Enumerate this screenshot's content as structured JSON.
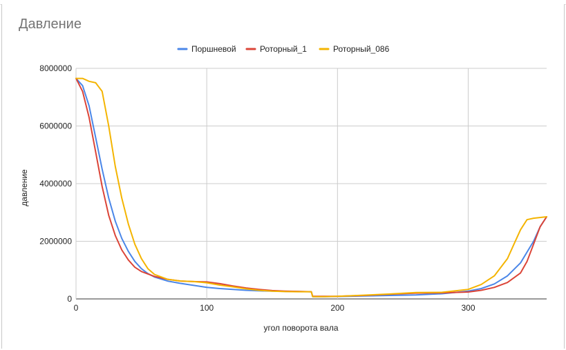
{
  "chart_data": {
    "type": "line",
    "title": "Давление",
    "xlabel": "угол поворота вала",
    "ylabel": "давление",
    "xlim": [
      0,
      360
    ],
    "ylim": [
      0,
      8000000
    ],
    "x_ticks": [
      "0",
      "100",
      "200",
      "300"
    ],
    "y_ticks": [
      "0",
      "2000000",
      "4000000",
      "6000000",
      "8000000"
    ],
    "grid": true,
    "legend_position": "top",
    "series": [
      {
        "name": "Поршневой",
        "color": "#4a86e8",
        "points": [
          [
            0,
            7650000
          ],
          [
            5,
            7400000
          ],
          [
            10,
            6700000
          ],
          [
            15,
            5600000
          ],
          [
            20,
            4500000
          ],
          [
            25,
            3500000
          ],
          [
            30,
            2700000
          ],
          [
            35,
            2100000
          ],
          [
            40,
            1650000
          ],
          [
            45,
            1300000
          ],
          [
            50,
            1050000
          ],
          [
            55,
            880000
          ],
          [
            60,
            760000
          ],
          [
            70,
            620000
          ],
          [
            80,
            540000
          ],
          [
            90,
            470000
          ],
          [
            100,
            400000
          ],
          [
            110,
            360000
          ],
          [
            120,
            330000
          ],
          [
            130,
            300000
          ],
          [
            140,
            280000
          ],
          [
            150,
            270000
          ],
          [
            160,
            260000
          ],
          [
            170,
            255000
          ],
          [
            180,
            250000
          ],
          [
            181,
            80000
          ],
          [
            190,
            80000
          ],
          [
            200,
            85000
          ],
          [
            220,
            100000
          ],
          [
            240,
            120000
          ],
          [
            260,
            140000
          ],
          [
            280,
            180000
          ],
          [
            300,
            270000
          ],
          [
            310,
            360000
          ],
          [
            320,
            520000
          ],
          [
            330,
            800000
          ],
          [
            340,
            1250000
          ],
          [
            350,
            2000000
          ],
          [
            355,
            2500000
          ],
          [
            360,
            2850000
          ]
        ]
      },
      {
        "name": "Роторный_1",
        "color": "#db4437",
        "points": [
          [
            0,
            7650000
          ],
          [
            5,
            7200000
          ],
          [
            10,
            6300000
          ],
          [
            15,
            5100000
          ],
          [
            20,
            3900000
          ],
          [
            25,
            2900000
          ],
          [
            30,
            2200000
          ],
          [
            35,
            1700000
          ],
          [
            40,
            1350000
          ],
          [
            45,
            1100000
          ],
          [
            50,
            950000
          ],
          [
            60,
            780000
          ],
          [
            70,
            680000
          ],
          [
            80,
            620000
          ],
          [
            90,
            600000
          ],
          [
            100,
            590000
          ],
          [
            110,
            530000
          ],
          [
            120,
            450000
          ],
          [
            130,
            380000
          ],
          [
            140,
            330000
          ],
          [
            150,
            290000
          ],
          [
            160,
            270000
          ],
          [
            170,
            260000
          ],
          [
            180,
            250000
          ],
          [
            181,
            90000
          ],
          [
            190,
            90000
          ],
          [
            200,
            90000
          ],
          [
            220,
            120000
          ],
          [
            240,
            160000
          ],
          [
            260,
            200000
          ],
          [
            280,
            210000
          ],
          [
            300,
            240000
          ],
          [
            310,
            300000
          ],
          [
            320,
            400000
          ],
          [
            330,
            570000
          ],
          [
            340,
            900000
          ],
          [
            345,
            1300000
          ],
          [
            350,
            1900000
          ],
          [
            355,
            2500000
          ],
          [
            360,
            2850000
          ]
        ]
      },
      {
        "name": "Роторный_086",
        "color": "#f4b400",
        "points": [
          [
            0,
            7650000
          ],
          [
            5,
            7650000
          ],
          [
            10,
            7550000
          ],
          [
            15,
            7500000
          ],
          [
            20,
            7200000
          ],
          [
            25,
            6000000
          ],
          [
            30,
            4600000
          ],
          [
            35,
            3500000
          ],
          [
            40,
            2600000
          ],
          [
            45,
            1900000
          ],
          [
            50,
            1400000
          ],
          [
            55,
            1050000
          ],
          [
            60,
            850000
          ],
          [
            70,
            680000
          ],
          [
            80,
            620000
          ],
          [
            90,
            600000
          ],
          [
            100,
            560000
          ],
          [
            110,
            480000
          ],
          [
            120,
            420000
          ],
          [
            130,
            350000
          ],
          [
            140,
            300000
          ],
          [
            150,
            270000
          ],
          [
            160,
            255000
          ],
          [
            170,
            250000
          ],
          [
            180,
            250000
          ],
          [
            181,
            80000
          ],
          [
            190,
            80000
          ],
          [
            200,
            90000
          ],
          [
            220,
            130000
          ],
          [
            240,
            170000
          ],
          [
            260,
            220000
          ],
          [
            280,
            230000
          ],
          [
            300,
            330000
          ],
          [
            310,
            500000
          ],
          [
            320,
            800000
          ],
          [
            330,
            1400000
          ],
          [
            335,
            1900000
          ],
          [
            340,
            2400000
          ],
          [
            345,
            2750000
          ],
          [
            350,
            2800000
          ],
          [
            360,
            2850000
          ]
        ]
      }
    ]
  }
}
